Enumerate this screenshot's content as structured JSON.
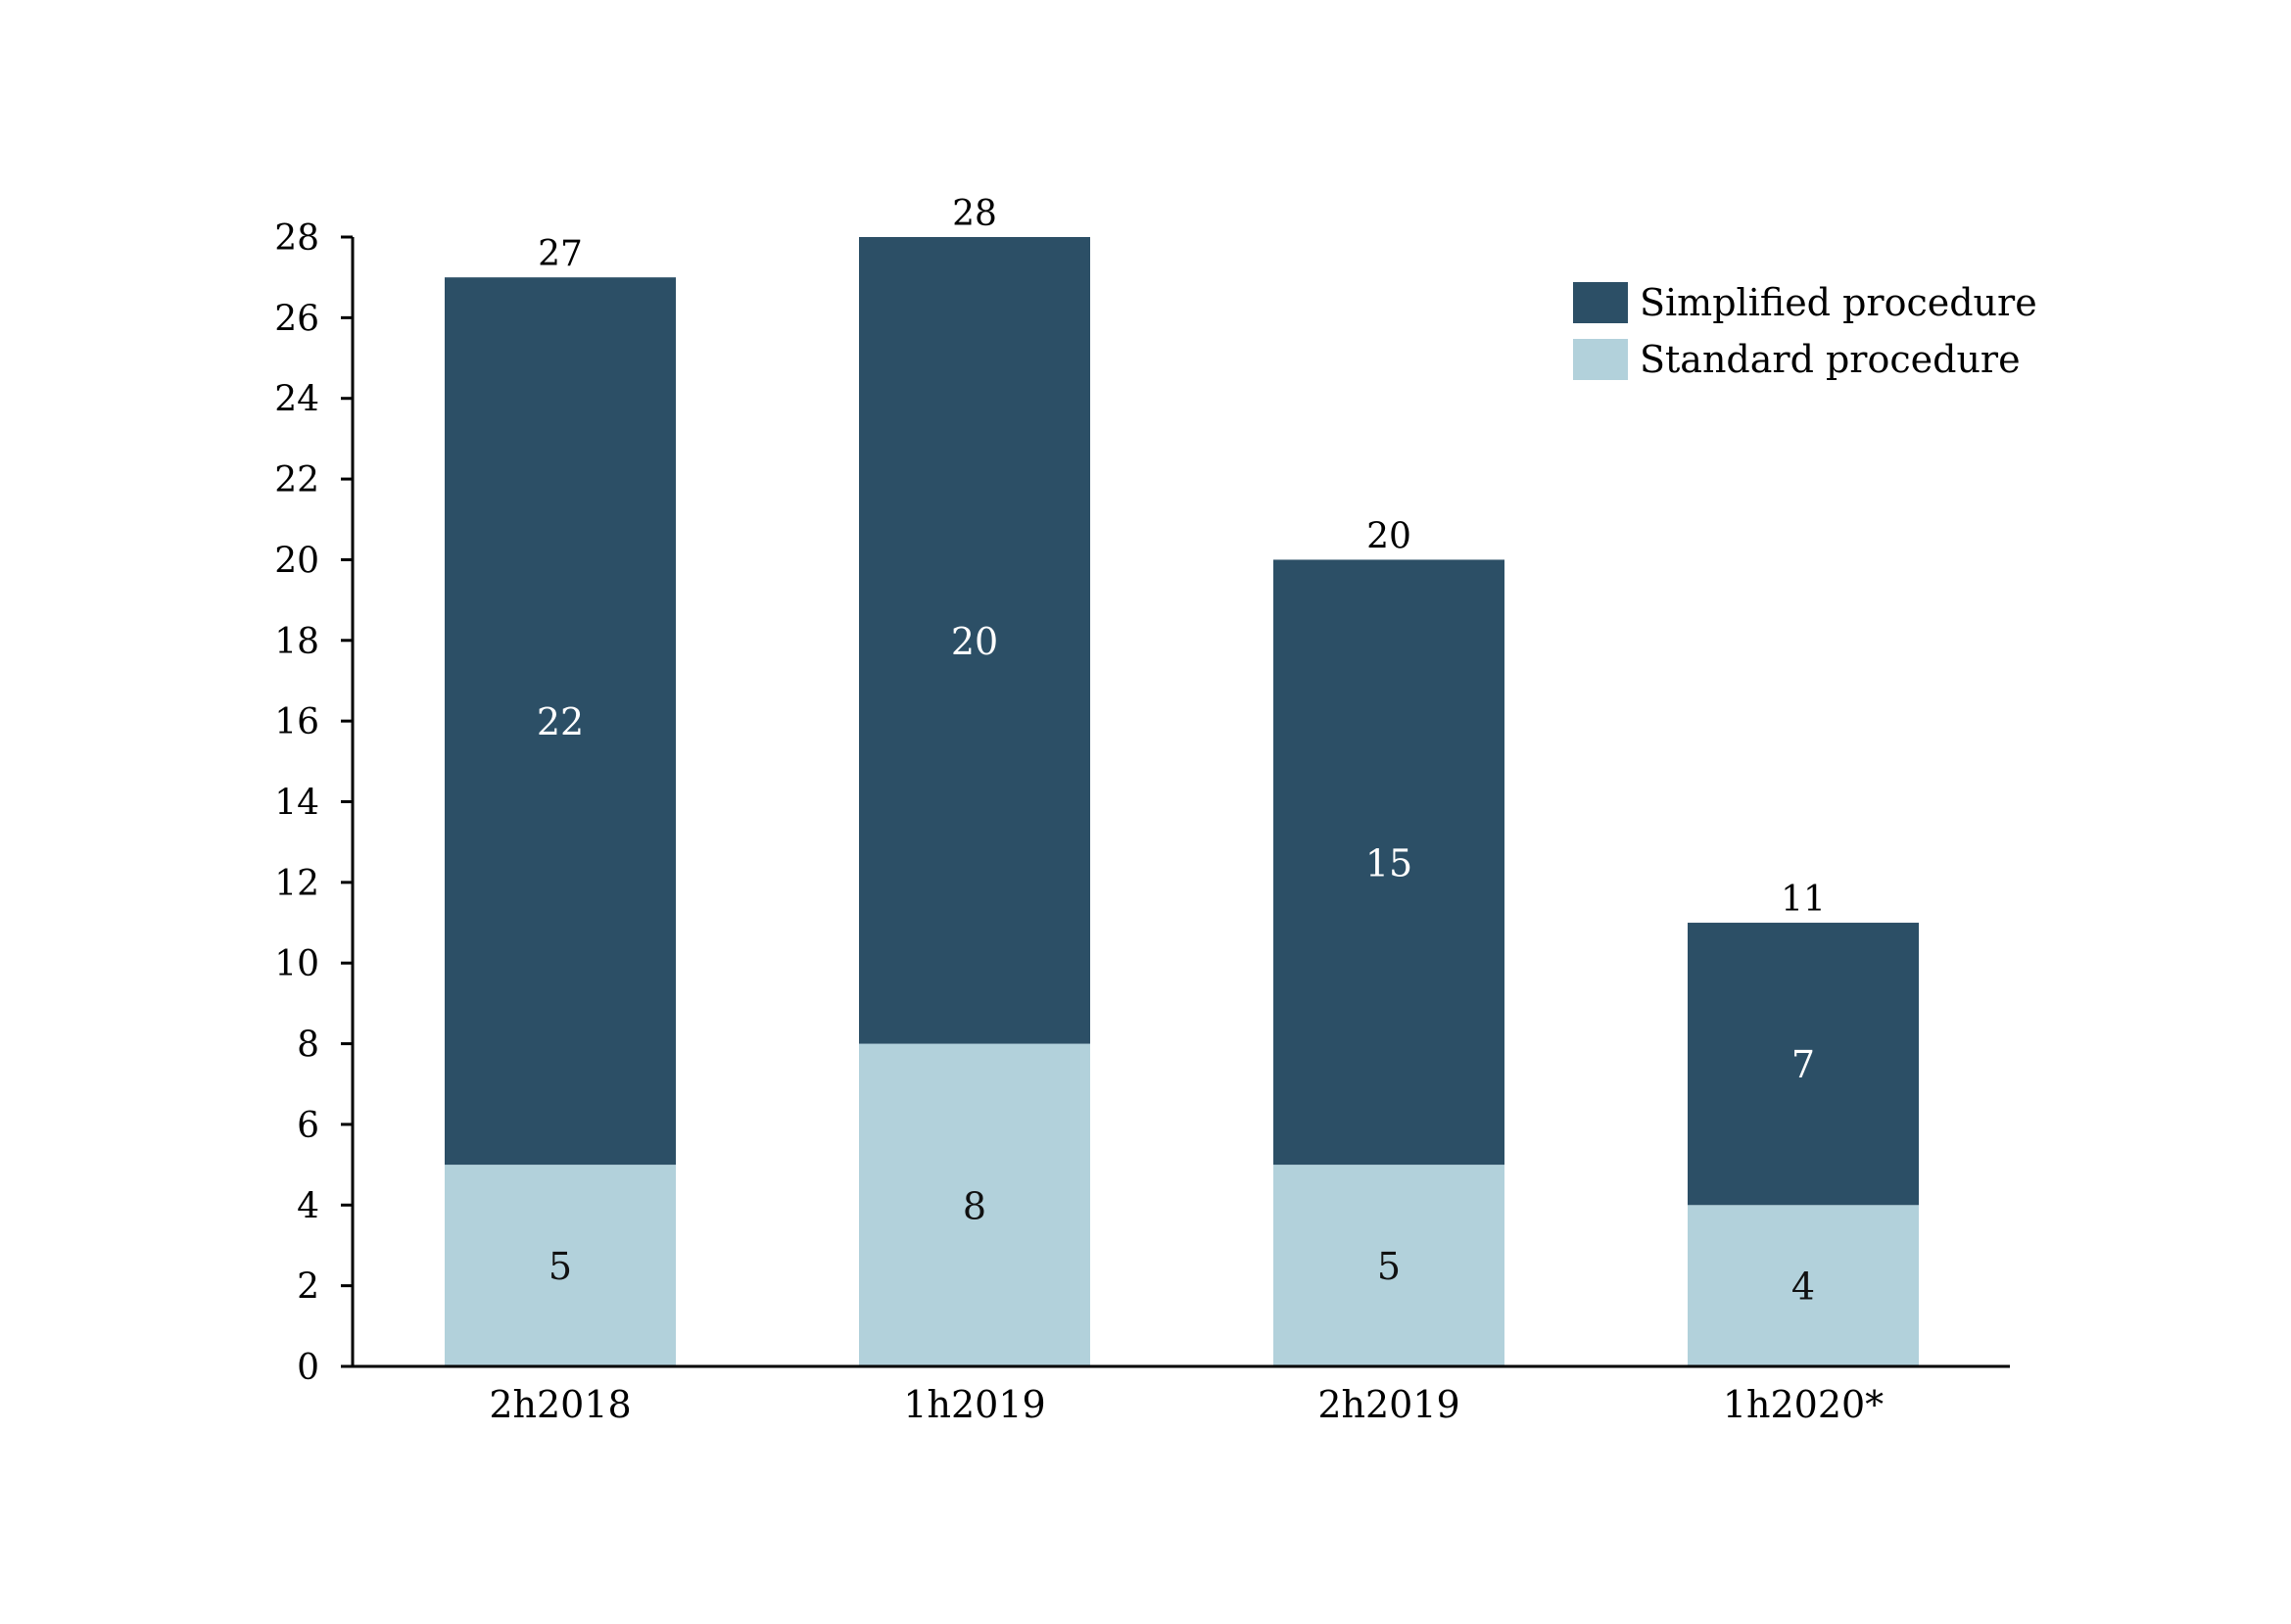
{
  "chart_data": {
    "type": "bar",
    "stacked": true,
    "title": "",
    "xlabel": "",
    "ylabel": "",
    "categories": [
      "2h2018",
      "1h2019",
      "2h2019",
      "1h2020*"
    ],
    "series": [
      {
        "name": "Standard procedure",
        "values": [
          5,
          8,
          5,
          4
        ],
        "color": "#b2d1db"
      },
      {
        "name": "Simplified procedure",
        "values": [
          22,
          20,
          15,
          7
        ],
        "color": "#2c4f66"
      }
    ],
    "totals": [
      27,
      28,
      20,
      11
    ],
    "ylim": [
      0,
      28
    ],
    "yticks": [
      0,
      2,
      4,
      6,
      8,
      10,
      12,
      14,
      16,
      18,
      20,
      22,
      24,
      26,
      28
    ],
    "grid": false,
    "legend_position": "top-right",
    "legend_order": [
      "Simplified procedure",
      "Standard procedure"
    ]
  }
}
